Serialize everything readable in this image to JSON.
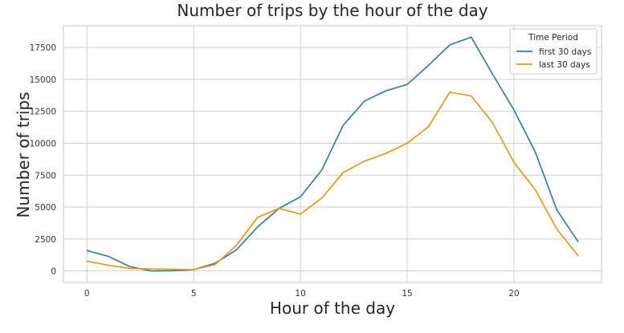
{
  "chart_data": {
    "type": "line",
    "title": "Number of trips by the hour of the day",
    "xlabel": "Hour of the day",
    "ylabel": "Number of trips",
    "xlim": [
      -1.1,
      24.1
    ],
    "ylim": [
      -900,
      19200
    ],
    "xticks": [
      0,
      5,
      10,
      15,
      20
    ],
    "yticks": [
      0,
      2500,
      5000,
      7500,
      10000,
      12500,
      15000,
      17500
    ],
    "grid": true,
    "legend": {
      "title": "Time Period",
      "placement": "top-right"
    },
    "x": [
      0,
      1,
      2,
      3,
      4,
      5,
      6,
      7,
      8,
      9,
      10,
      11,
      12,
      13,
      14,
      15,
      16,
      17,
      18,
      19,
      20,
      21,
      22,
      23
    ],
    "series": [
      {
        "name": "first 30 days",
        "color": "#3a7d9c",
        "values": [
          1600,
          1150,
          350,
          0,
          20,
          100,
          600,
          1650,
          3450,
          4900,
          5800,
          7900,
          11400,
          13300,
          14100,
          14600,
          16100,
          17700,
          18300,
          15400,
          12600,
          9300,
          4800,
          2300
        ]
      },
      {
        "name": "last 30 days",
        "color": "#e09b1a",
        "values": [
          750,
          450,
          200,
          150,
          130,
          100,
          500,
          2000,
          4200,
          4900,
          4450,
          5700,
          7700,
          8600,
          9200,
          10000,
          11300,
          14000,
          13700,
          11600,
          8500,
          6350,
          3300,
          1200
        ]
      }
    ]
  }
}
